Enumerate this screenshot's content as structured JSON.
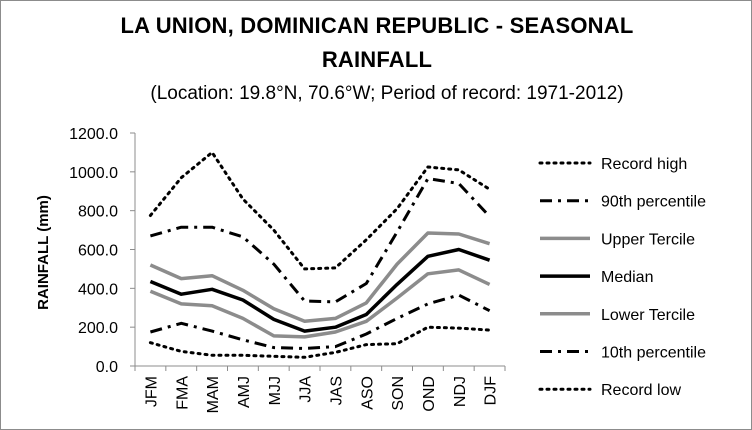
{
  "title_line1": "LA UNION, DOMINICAN REPUBLIC - SEASONAL",
  "title_line2": "RAINFALL",
  "subtitle": "(Location: 19.8°N, 70.6°W; Period of record: 1971-2012)",
  "chart_data": {
    "type": "line",
    "ylabel": "RAINFALL (mm)",
    "ylim": [
      0,
      1200
    ],
    "yticks": [
      "0.0",
      "200.0",
      "400.0",
      "600.0",
      "800.0",
      "1000.0",
      "1200.0"
    ],
    "categories": [
      "JFM",
      "FMA",
      "MAM",
      "AMJ",
      "MJJ",
      "JJA",
      "JAS",
      "ASO",
      "SON",
      "OND",
      "NDJ",
      "DJF"
    ],
    "grid": false,
    "legend_position": "right",
    "series": [
      {
        "name": "Record high",
        "color": "#000000",
        "style": "dotted",
        "values": [
          775,
          970,
          1100,
          860,
          700,
          500,
          505,
          650,
          810,
          1025,
          1010,
          910
        ]
      },
      {
        "name": "90th percentile",
        "color": "#000000",
        "style": "dashdot",
        "values": [
          670,
          715,
          715,
          665,
          525,
          335,
          330,
          425,
          690,
          965,
          940,
          770
        ]
      },
      {
        "name": "Upper Tercile",
        "color": "#8c8c8c",
        "style": "solid",
        "values": [
          520,
          450,
          465,
          390,
          295,
          230,
          245,
          325,
          525,
          685,
          680,
          630
        ]
      },
      {
        "name": "Median",
        "color": "#000000",
        "style": "solid",
        "values": [
          435,
          370,
          395,
          340,
          240,
          180,
          200,
          265,
          420,
          565,
          600,
          545
        ]
      },
      {
        "name": "Lower Tercile",
        "color": "#8c8c8c",
        "style": "solid",
        "values": [
          385,
          320,
          310,
          245,
          155,
          150,
          175,
          230,
          350,
          475,
          495,
          420
        ]
      },
      {
        "name": "10th percentile",
        "color": "#000000",
        "style": "dashdot",
        "values": [
          175,
          220,
          180,
          135,
          95,
          90,
          100,
          165,
          245,
          320,
          365,
          285
        ]
      },
      {
        "name": "Record low",
        "color": "#000000",
        "style": "dotted",
        "values": [
          120,
          75,
          55,
          55,
          50,
          45,
          70,
          110,
          115,
          200,
          195,
          185
        ]
      }
    ]
  }
}
